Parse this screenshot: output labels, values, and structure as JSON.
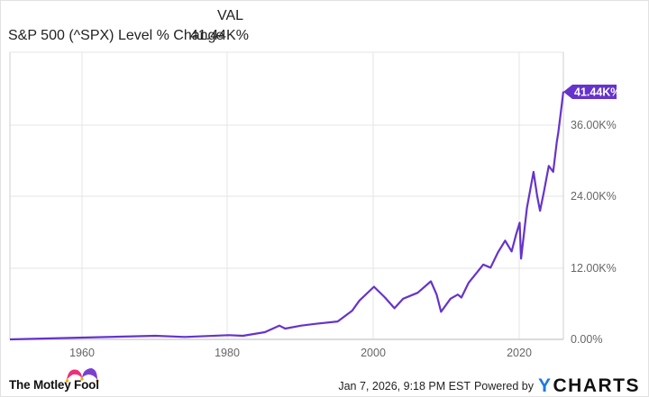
{
  "legend": {
    "column_header": "VAL",
    "series_label": "S&P 500 (^SPX) Level % Change",
    "series_value": "41.44K%",
    "series_color": "#6633cc"
  },
  "current_value_flag": "41.44K%",
  "footer": {
    "brand": "The Motley Fool",
    "timestamp": "Jan 7, 2026, 9:18 PM EST",
    "powered_by": "Powered by",
    "provider": "CHARTS",
    "provider_prefix": "Y"
  },
  "chart_data": {
    "type": "line",
    "title": "S&P 500 (^SPX) Level % Change",
    "xlabel": "",
    "ylabel": "",
    "x_tick_labels": [
      "1960",
      "1980",
      "2000",
      "2020"
    ],
    "y_tick_labels": [
      "0.00%",
      "12.00K%",
      "24.00K%",
      "36.00K%"
    ],
    "ylim": [
      0,
      48000
    ],
    "xlim": [
      1950,
      2026
    ],
    "grid": true,
    "legend_position": "top-left",
    "series": [
      {
        "name": "S&P 500 (^SPX) Level % Change",
        "color": "#6633cc",
        "x": [
          1950,
          1955,
          1960,
          1965,
          1970,
          1974,
          1977,
          1980,
          1982,
          1985,
          1987,
          1987.8,
          1990,
          1992,
          1995,
          1997,
          1998,
          2000,
          2001.5,
          2002.8,
          2004,
          2006,
          2007.8,
          2008.6,
          2009.2,
          2010.5,
          2011.5,
          2012,
          2013,
          2014,
          2015,
          2016,
          2017,
          2018,
          2018.9,
          2019.5,
          2020,
          2020.2,
          2021,
          2021.9,
          2022.4,
          2022.8,
          2023.3,
          2024,
          2024.6,
          2025.1,
          2025.3,
          2025.6,
          2026
        ],
        "values": [
          0,
          150,
          300,
          450,
          600,
          400,
          550,
          700,
          600,
          1200,
          2300,
          1800,
          2300,
          2600,
          3000,
          4800,
          6500,
          8800,
          7000,
          5200,
          6800,
          7800,
          9700,
          7500,
          4600,
          6800,
          7500,
          7000,
          9500,
          11000,
          12500,
          12000,
          14500,
          16500,
          14700,
          17500,
          19500,
          13500,
          22000,
          28000,
          24000,
          21500,
          24500,
          29000,
          28000,
          33000,
          34500,
          37500,
          41440
        ]
      }
    ]
  }
}
